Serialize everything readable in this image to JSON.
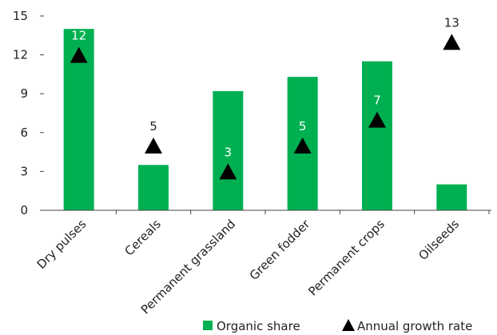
{
  "chart_data": {
    "type": "bar",
    "categories": [
      "Dry pulses",
      "Cereals",
      "Permanent grassland",
      "Green fodder",
      "Permanent crops",
      "Oilseeds"
    ],
    "series": [
      {
        "name": "Organic share",
        "type": "bar",
        "values": [
          14.0,
          3.5,
          9.2,
          10.3,
          11.5,
          2.0
        ],
        "color": "#00b050"
      },
      {
        "name": "Annual growth rate",
        "type": "marker",
        "marker": "triangle",
        "values": [
          12,
          5,
          3,
          5,
          7,
          13
        ],
        "color": "#000000"
      }
    ],
    "data_labels": [
      "12",
      "5",
      "3",
      "5",
      "7",
      "13"
    ],
    "yticks": [
      "0",
      "3",
      "6",
      "9",
      "12",
      "15"
    ],
    "ylim": [
      0,
      15
    ],
    "grid": false,
    "legend": {
      "position": "bottom-right",
      "items": [
        "Organic share",
        "Annual growth rate"
      ]
    }
  }
}
